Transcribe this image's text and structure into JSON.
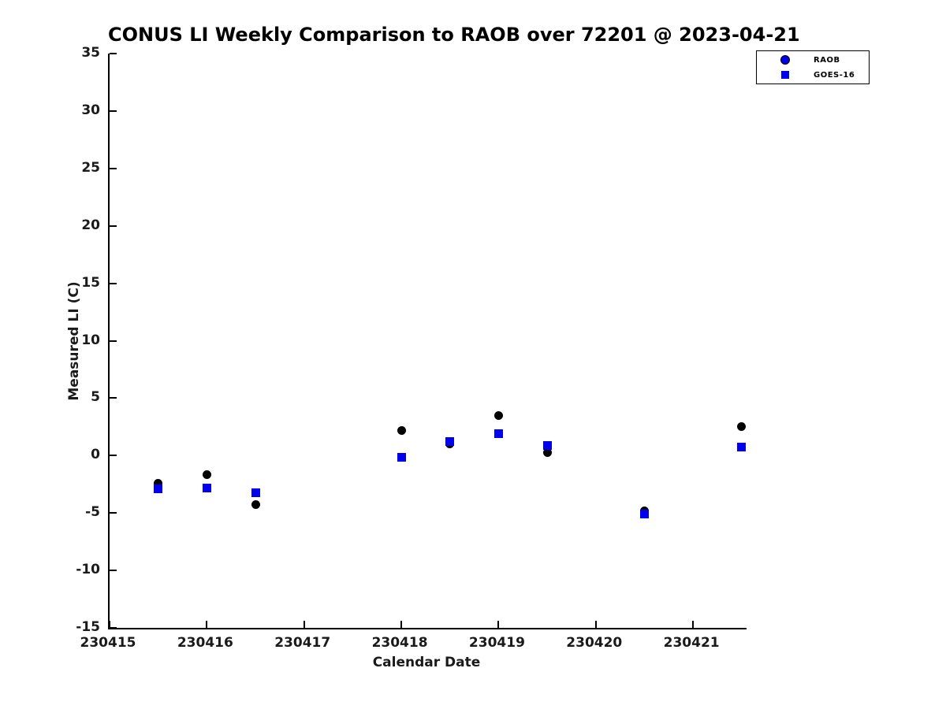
{
  "figure": {
    "background": "#ffffff",
    "text_color": "#1a1a1a",
    "spine_color": "#000000"
  },
  "chart_data": {
    "type": "scatter",
    "title": "CONUS LI Weekly Comparison to RAOB over 72201 @ 2023-04-21",
    "xlabel": "Calendar Date",
    "ylabel": "Measured LI (C)",
    "xlim": [
      230415,
      230421.55
    ],
    "ylim": [
      -15,
      35
    ],
    "x_ticks": [
      230415,
      230416,
      230417,
      230418,
      230419,
      230420,
      230421
    ],
    "y_ticks": [
      35,
      30,
      25,
      20,
      15,
      10,
      5,
      0,
      -5,
      -10,
      -15
    ],
    "grid": false,
    "legend_position": "upper right",
    "series": [
      {
        "name": "RAOB",
        "marker": "circle",
        "color": "#000000",
        "legend_marker_color": "#0000ee",
        "x": [
          230415.5,
          230416.0,
          230416.5,
          230418.0,
          230418.5,
          230419.0,
          230419.5,
          230420.5,
          230421.5
        ],
        "y": [
          -2.4,
          -1.65,
          -4.25,
          2.2,
          1.0,
          3.5,
          0.25,
          -4.8,
          2.55
        ]
      },
      {
        "name": "GOES-16",
        "marker": "square",
        "color": "#0000ee",
        "legend_marker_color": "#0000ee",
        "x": [
          230415.5,
          230416.0,
          230416.5,
          230418.0,
          230418.5,
          230419.0,
          230419.5,
          230420.5,
          230421.5
        ],
        "y": [
          -2.9,
          -2.8,
          -3.25,
          -0.15,
          1.25,
          1.9,
          0.85,
          -5.1,
          0.75
        ]
      }
    ]
  }
}
